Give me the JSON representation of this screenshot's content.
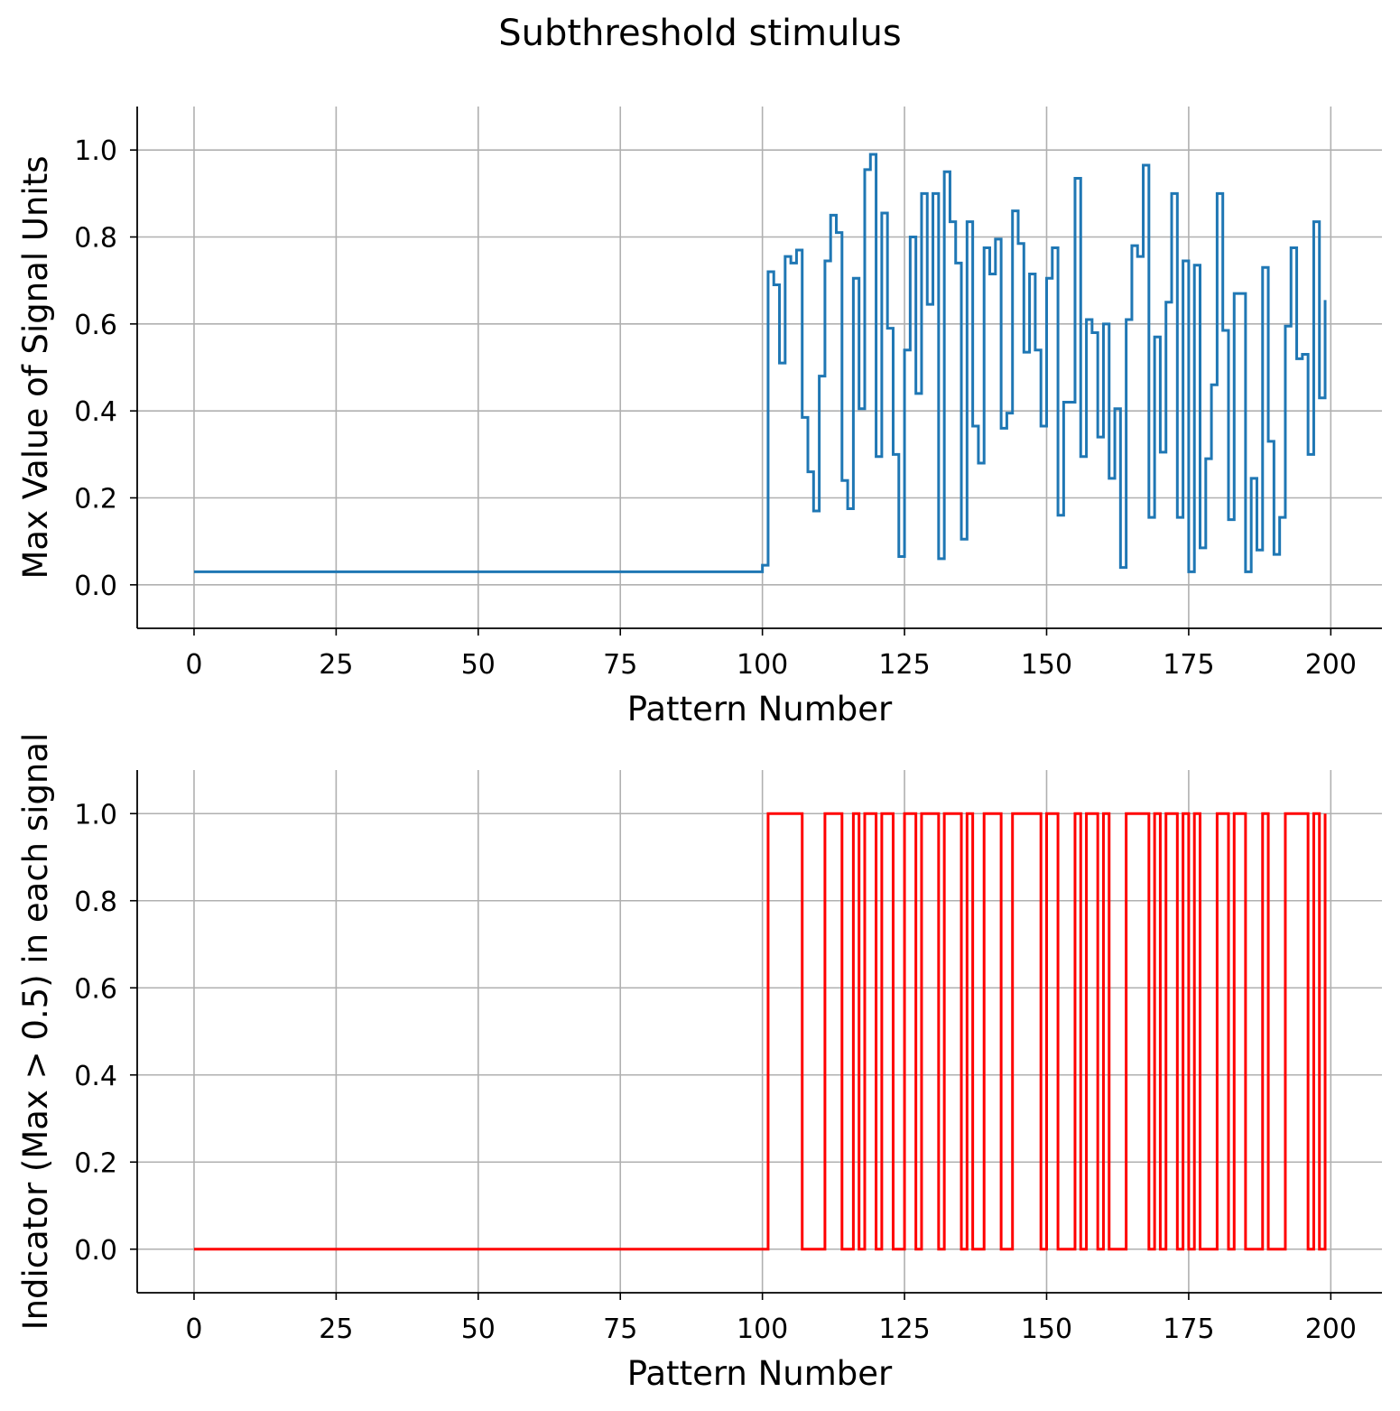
{
  "figure": {
    "title": "Subthreshold stimulus"
  },
  "chart_data": [
    {
      "type": "line",
      "step": "post",
      "xlabel": "Pattern Number",
      "ylabel": "Max Value of Signal Units",
      "xlim": [
        -10,
        209
      ],
      "ylim": [
        -0.1,
        1.1
      ],
      "xticks": [
        0,
        25,
        50,
        75,
        100,
        125,
        150,
        175,
        200
      ],
      "yticks": [
        0.0,
        0.2,
        0.4,
        0.6,
        0.8,
        1.0
      ],
      "grid": true,
      "color": "#1f77b4",
      "start_x": 0,
      "series": [
        {
          "values": [
            0.03,
            0.03,
            0.03,
            0.03,
            0.03,
            0.03,
            0.03,
            0.03,
            0.03,
            0.03,
            0.03,
            0.03,
            0.03,
            0.03,
            0.03,
            0.03,
            0.03,
            0.03,
            0.03,
            0.03,
            0.03,
            0.03,
            0.03,
            0.03,
            0.03,
            0.03,
            0.03,
            0.03,
            0.03,
            0.03,
            0.03,
            0.03,
            0.03,
            0.03,
            0.03,
            0.03,
            0.03,
            0.03,
            0.03,
            0.03,
            0.03,
            0.03,
            0.03,
            0.03,
            0.03,
            0.03,
            0.03,
            0.03,
            0.03,
            0.03,
            0.03,
            0.03,
            0.03,
            0.03,
            0.03,
            0.03,
            0.03,
            0.03,
            0.03,
            0.03,
            0.03,
            0.03,
            0.03,
            0.03,
            0.03,
            0.03,
            0.03,
            0.03,
            0.03,
            0.03,
            0.03,
            0.03,
            0.03,
            0.03,
            0.03,
            0.03,
            0.03,
            0.03,
            0.03,
            0.03,
            0.03,
            0.03,
            0.03,
            0.03,
            0.03,
            0.03,
            0.03,
            0.03,
            0.03,
            0.03,
            0.03,
            0.03,
            0.03,
            0.03,
            0.03,
            0.03,
            0.03,
            0.03,
            0.03,
            0.03,
            0.045,
            0.72,
            0.69,
            0.51,
            0.755,
            0.74,
            0.77,
            0.385,
            0.26,
            0.17,
            0.48,
            0.745,
            0.85,
            0.81,
            0.24,
            0.175,
            0.705,
            0.405,
            0.955,
            0.99,
            0.295,
            0.855,
            0.59,
            0.3,
            0.065,
            0.54,
            0.8,
            0.44,
            0.9,
            0.645,
            0.9,
            0.06,
            0.95,
            0.835,
            0.74,
            0.105,
            0.835,
            0.365,
            0.28,
            0.775,
            0.715,
            0.795,
            0.36,
            0.395,
            0.86,
            0.785,
            0.535,
            0.715,
            0.54,
            0.365,
            0.705,
            0.775,
            0.16,
            0.42,
            0.42,
            0.935,
            0.295,
            0.61,
            0.58,
            0.34,
            0.6,
            0.245,
            0.405,
            0.04,
            0.61,
            0.78,
            0.755,
            0.965,
            0.155,
            0.57,
            0.305,
            0.65,
            0.9,
            0.155,
            0.745,
            0.03,
            0.735,
            0.085,
            0.29,
            0.46,
            0.9,
            0.585,
            0.15,
            0.67,
            0.67,
            0.03,
            0.245,
            0.08,
            0.73,
            0.33,
            0.07,
            0.155,
            0.595,
            0.775,
            0.52,
            0.53,
            0.3,
            0.835,
            0.43,
            0.655
          ]
        }
      ]
    },
    {
      "type": "line",
      "step": "post",
      "xlabel": "Pattern Number",
      "ylabel": "Indicator (Max > 0.5) in each signal",
      "xlim": [
        -10,
        209
      ],
      "ylim": [
        -0.1,
        1.1
      ],
      "xticks": [
        0,
        25,
        50,
        75,
        100,
        125,
        150,
        175,
        200
      ],
      "yticks": [
        0.0,
        0.2,
        0.4,
        0.6,
        0.8,
        1.0
      ],
      "grid": true,
      "color": "#ff0000",
      "start_x": 0,
      "series": [
        {
          "values": [
            0,
            0,
            0,
            0,
            0,
            0,
            0,
            0,
            0,
            0,
            0,
            0,
            0,
            0,
            0,
            0,
            0,
            0,
            0,
            0,
            0,
            0,
            0,
            0,
            0,
            0,
            0,
            0,
            0,
            0,
            0,
            0,
            0,
            0,
            0,
            0,
            0,
            0,
            0,
            0,
            0,
            0,
            0,
            0,
            0,
            0,
            0,
            0,
            0,
            0,
            0,
            0,
            0,
            0,
            0,
            0,
            0,
            0,
            0,
            0,
            0,
            0,
            0,
            0,
            0,
            0,
            0,
            0,
            0,
            0,
            0,
            0,
            0,
            0,
            0,
            0,
            0,
            0,
            0,
            0,
            0,
            0,
            0,
            0,
            0,
            0,
            0,
            0,
            0,
            0,
            0,
            0,
            0,
            0,
            0,
            0,
            0,
            0,
            0,
            0,
            0,
            1,
            1,
            1,
            1,
            1,
            1,
            0,
            0,
            0,
            0,
            1,
            1,
            1,
            0,
            0,
            1,
            0,
            1,
            1,
            0,
            1,
            1,
            0,
            0,
            1,
            1,
            0,
            1,
            1,
            1,
            0,
            1,
            1,
            1,
            0,
            1,
            0,
            0,
            1,
            1,
            1,
            0,
            0,
            1,
            1,
            1,
            1,
            1,
            0,
            1,
            1,
            0,
            0,
            0,
            1,
            0,
            1,
            1,
            0,
            1,
            0,
            0,
            0,
            1,
            1,
            1,
            1,
            0,
            1,
            0,
            1,
            1,
            0,
            1,
            0,
            1,
            0,
            0,
            0,
            1,
            1,
            0,
            1,
            1,
            0,
            0,
            0,
            1,
            0,
            0,
            0,
            1,
            1,
            1,
            1,
            0,
            1,
            0,
            1
          ]
        }
      ]
    }
  ]
}
